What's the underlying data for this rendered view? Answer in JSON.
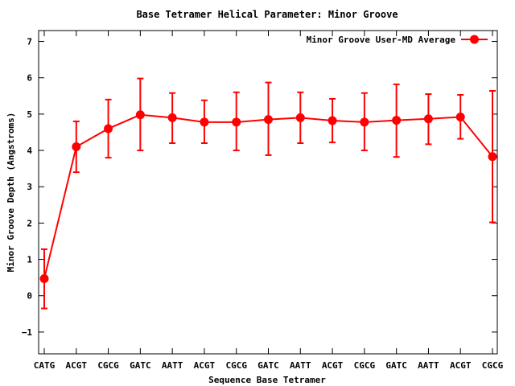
{
  "chart_data": {
    "type": "line",
    "title": "Base Tetramer Helical Parameter: Minor Groove",
    "xlabel": "Sequence Base Tetramer",
    "ylabel": "Minor Groove Depth (Angstroms)",
    "categories": [
      "CATG",
      "ACGT",
      "CGCG",
      "GATC",
      "AATT",
      "ACGT",
      "CGCG",
      "GATC",
      "AATT",
      "ACGT",
      "CGCG",
      "GATC",
      "AATT",
      "ACGT",
      "CGCG"
    ],
    "ylim": [
      -1.6,
      7.3
    ],
    "yticks": [
      -1,
      0,
      1,
      2,
      3,
      4,
      5,
      6,
      7
    ],
    "grid": false,
    "legend_position": "top-right",
    "series": [
      {
        "name": "Minor Groove User-MD Average",
        "color": "#ff0000",
        "values": [
          0.47,
          4.1,
          4.6,
          4.98,
          4.9,
          4.78,
          4.78,
          4.85,
          4.9,
          4.82,
          4.78,
          4.83,
          4.87,
          4.92,
          3.83
        ],
        "error_low": [
          -0.35,
          3.4,
          3.8,
          4.0,
          4.2,
          4.2,
          4.0,
          3.87,
          4.2,
          4.22,
          4.0,
          3.82,
          4.17,
          4.32,
          2.02
        ],
        "error_high": [
          1.28,
          4.8,
          5.4,
          5.98,
          5.58,
          5.38,
          5.6,
          5.87,
          5.6,
          5.42,
          5.58,
          5.82,
          5.55,
          5.53,
          5.64
        ]
      }
    ]
  }
}
